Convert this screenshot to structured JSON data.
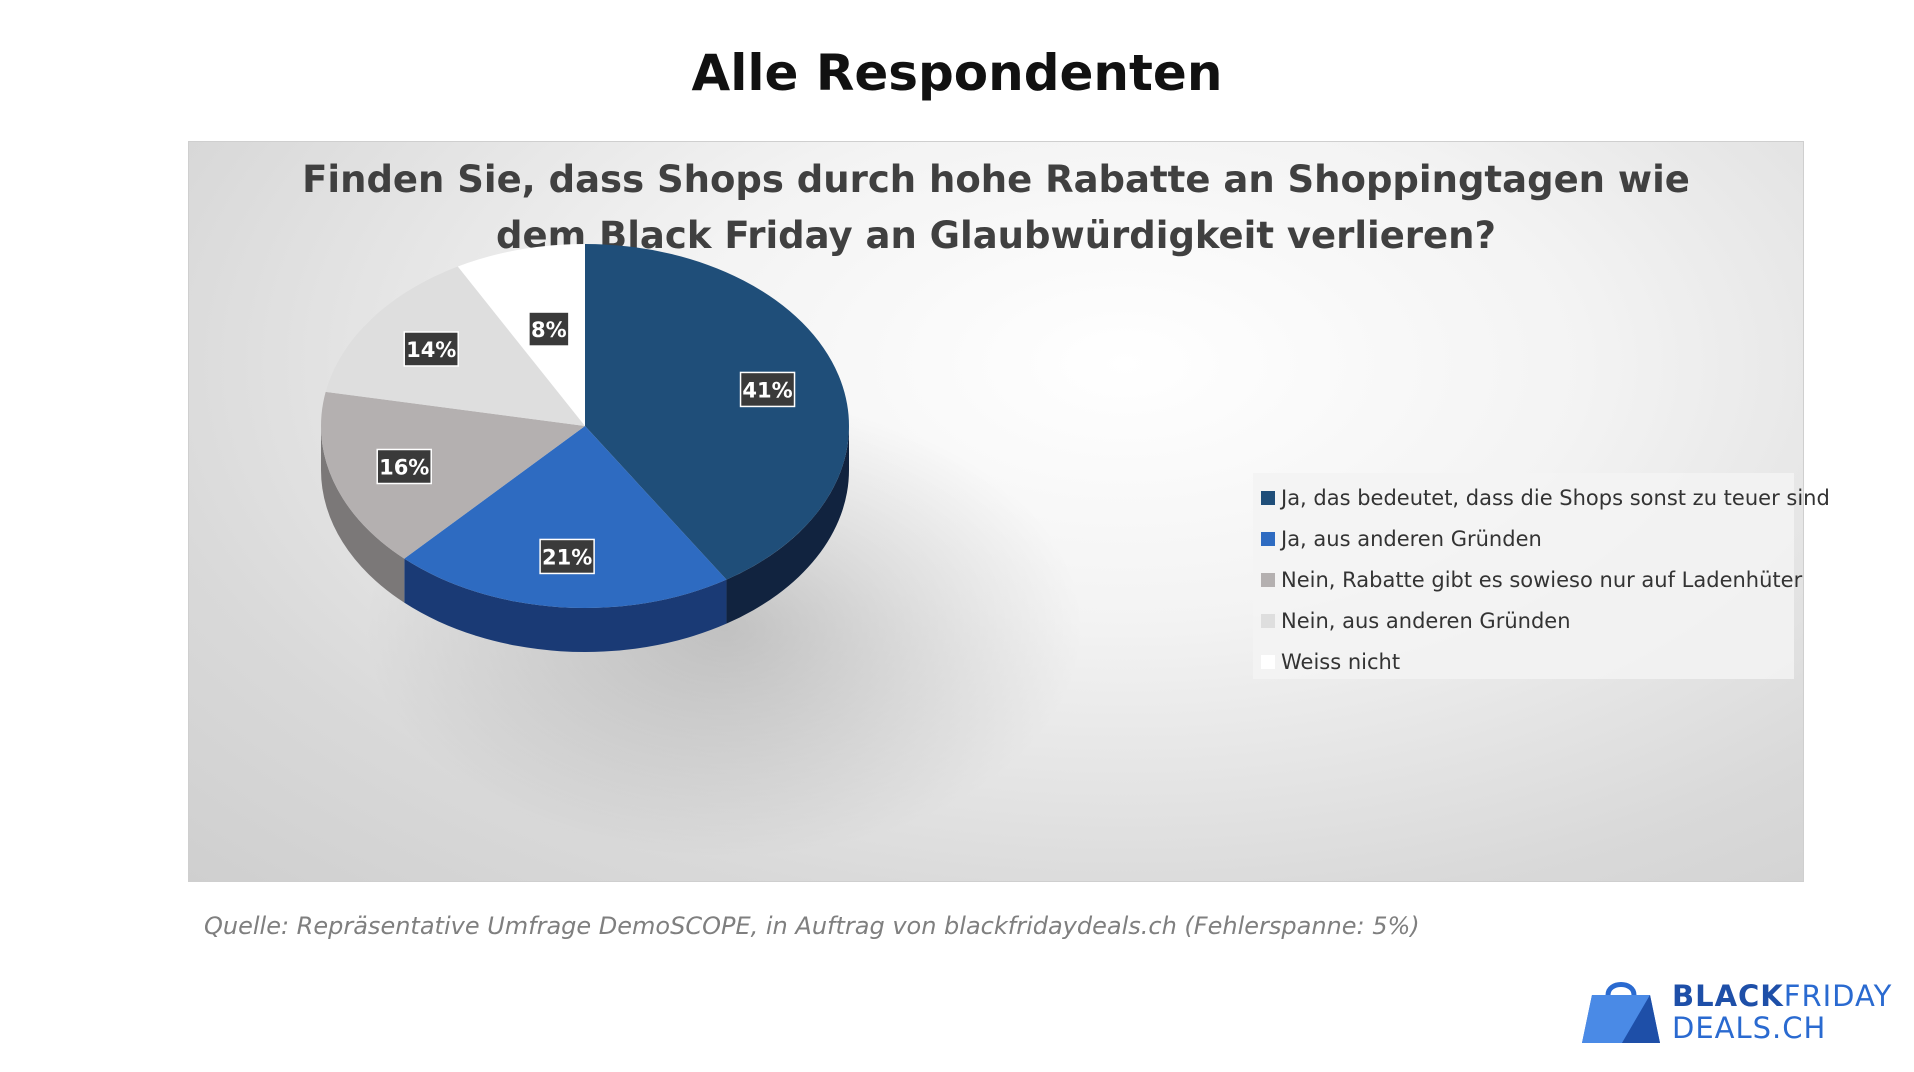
{
  "page": {
    "title": "Alle Respondenten"
  },
  "chart_data": {
    "type": "pie",
    "title_lines": [
      "Finden Sie, dass Shops durch hohe Rabatte an Shoppingtagen wie",
      "dem Black Friday an Glaubwürdigkeit verlieren?"
    ],
    "categories": [
      "Ja, das bedeutet, dass die Shops sonst zu teuer sind",
      "Ja, aus anderen Gründen",
      "Nein, Rabatte gibt es sowieso nur auf Ladenhüter",
      "Nein, aus anderen Gründen",
      "Weiss nicht"
    ],
    "values": [
      41,
      21,
      16,
      14,
      8
    ],
    "data_labels": [
      "41%",
      "21%",
      "16%",
      "14%",
      "8%"
    ],
    "colors": [
      "#1f4e79",
      "#2e6bc1",
      "#b4b0b0",
      "#dedede",
      "#ffffff"
    ],
    "side_colors": [
      "#11233f",
      "#1a3a75",
      "#7b7878",
      "#9e9e9e",
      "#bdbdbd"
    ],
    "legend_position": "right",
    "style": "3d"
  },
  "source": {
    "text": "Quelle: Repräsentative Umfrage DemoSCOPE, in Auftrag von blackfridaydeals.ch (Fehlerspanne: 5%)"
  },
  "logo": {
    "line1_bold": "BLACK",
    "line1_light": "FRIDAY",
    "line2": "DEALS.CH"
  }
}
